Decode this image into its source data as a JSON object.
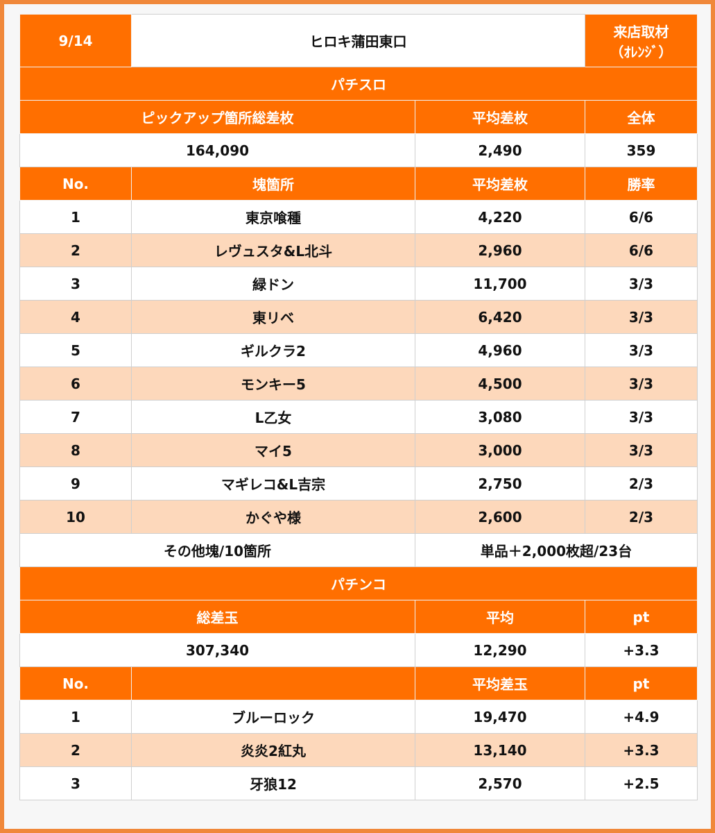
{
  "header": {
    "date": "9/14",
    "store": "ヒロキ蒲田東口",
    "note": [
      "来店取材",
      "（ｵﾚﾝｼﾞ）"
    ]
  },
  "slot": {
    "title": "パチスロ",
    "summary_headers": [
      "ピックアップ箇所総差枚",
      "平均差枚",
      "全体"
    ],
    "summary": [
      "164,090",
      "2,490",
      "359"
    ],
    "columns": [
      "No.",
      "塊箇所",
      "平均差枚",
      "勝率"
    ],
    "rows": [
      [
        "1",
        "東京喰種",
        "4,220",
        "6/6"
      ],
      [
        "2",
        "レヴュスタ&L北斗",
        "2,960",
        "6/6"
      ],
      [
        "3",
        "緑ドン",
        "11,700",
        "3/3"
      ],
      [
        "4",
        "東リベ",
        "6,420",
        "3/3"
      ],
      [
        "5",
        "ギルクラ2",
        "4,960",
        "3/3"
      ],
      [
        "6",
        "モンキー5",
        "4,500",
        "3/3"
      ],
      [
        "7",
        "L乙女",
        "3,080",
        "3/3"
      ],
      [
        "8",
        "マイ5",
        "3,000",
        "3/3"
      ],
      [
        "9",
        "マギレコ&L吉宗",
        "2,750",
        "2/3"
      ],
      [
        "10",
        "かぐや様",
        "2,600",
        "2/3"
      ]
    ],
    "other": [
      "その他塊/10箇所",
      "単品＋2,000枚超/23台"
    ]
  },
  "pachinko": {
    "title": "パチンコ",
    "summary_headers": [
      "総差玉",
      "平均",
      "pt"
    ],
    "summary": [
      "307,340",
      "12,290",
      "+3.3"
    ],
    "columns": {
      "no": "No.",
      "avg": "平均差玉",
      "pt": "pt"
    },
    "rows": [
      [
        "1",
        "ブルーロック",
        "19,470",
        "+4.9"
      ],
      [
        "2",
        "炎炎2紅丸",
        "13,140",
        "+3.3"
      ],
      [
        "3",
        "牙狼12",
        "2,570",
        "+2.5"
      ]
    ]
  }
}
